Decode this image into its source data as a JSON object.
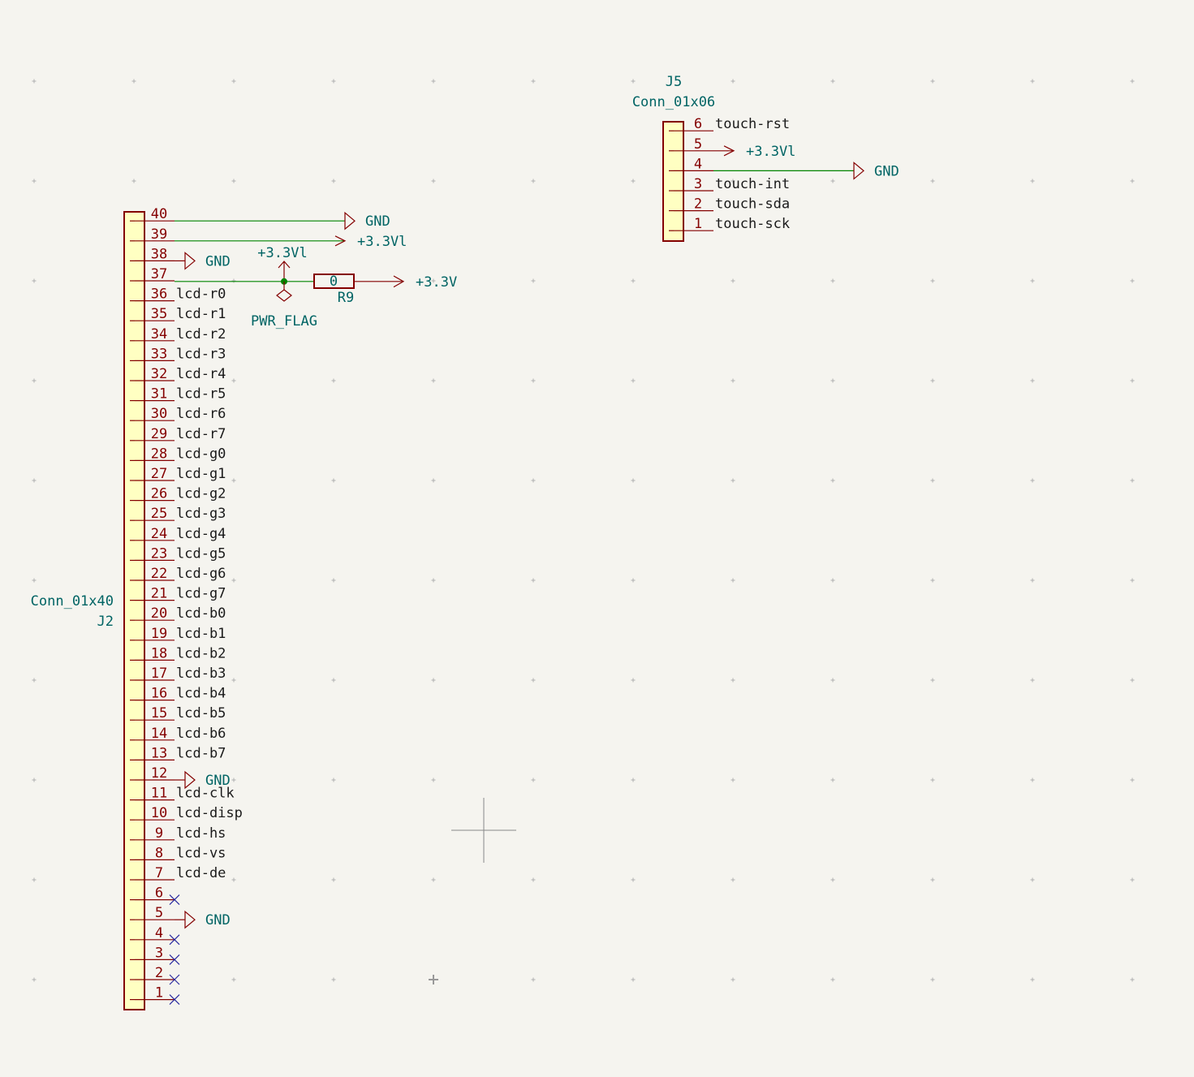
{
  "j2": {
    "reference": "J2",
    "value": "Conn_01x40",
    "pins": [
      {
        "number": 40,
        "power": "GND",
        "symbol": "gnd",
        "wire": true
      },
      {
        "number": 39,
        "power": "+3.3Vl",
        "symbol": "arrow",
        "wire": true
      },
      {
        "number": 38,
        "power": "GND",
        "symbol": "gnd"
      },
      {
        "number": 37
      },
      {
        "number": 36,
        "label": "lcd-r0"
      },
      {
        "number": 35,
        "label": "lcd-r1"
      },
      {
        "number": 34,
        "label": "lcd-r2"
      },
      {
        "number": 33,
        "label": "lcd-r3"
      },
      {
        "number": 32,
        "label": "lcd-r4"
      },
      {
        "number": 31,
        "label": "lcd-r5"
      },
      {
        "number": 30,
        "label": "lcd-r6"
      },
      {
        "number": 29,
        "label": "lcd-r7"
      },
      {
        "number": 28,
        "label": "lcd-g0"
      },
      {
        "number": 27,
        "label": "lcd-g1"
      },
      {
        "number": 26,
        "label": "lcd-g2"
      },
      {
        "number": 25,
        "label": "lcd-g3"
      },
      {
        "number": 24,
        "label": "lcd-g4"
      },
      {
        "number": 23,
        "label": "lcd-g5"
      },
      {
        "number": 22,
        "label": "lcd-g6"
      },
      {
        "number": 21,
        "label": "lcd-g7"
      },
      {
        "number": 20,
        "label": "lcd-b0"
      },
      {
        "number": 19,
        "label": "lcd-b1"
      },
      {
        "number": 18,
        "label": "lcd-b2"
      },
      {
        "number": 17,
        "label": "lcd-b3"
      },
      {
        "number": 16,
        "label": "lcd-b4"
      },
      {
        "number": 15,
        "label": "lcd-b5"
      },
      {
        "number": 14,
        "label": "lcd-b6"
      },
      {
        "number": 13,
        "label": "lcd-b7"
      },
      {
        "number": 12,
        "power": "GND",
        "symbol": "gnd"
      },
      {
        "number": 11,
        "label": "lcd-clk"
      },
      {
        "number": 10,
        "label": "lcd-disp"
      },
      {
        "number": 9,
        "label": "lcd-hs"
      },
      {
        "number": 8,
        "label": "lcd-vs"
      },
      {
        "number": 7,
        "label": "lcd-de"
      },
      {
        "number": 6,
        "nc": true
      },
      {
        "number": 5,
        "power": "GND",
        "symbol": "gnd"
      },
      {
        "number": 4,
        "nc": true
      },
      {
        "number": 3,
        "nc": true
      },
      {
        "number": 2,
        "nc": true
      },
      {
        "number": 1,
        "nc": true
      }
    ]
  },
  "pin37_circuit": {
    "power_in": "+3.3Vl",
    "flag": "PWR_FLAG",
    "resistor_value": "0",
    "resistor_ref": "R9",
    "power_out": "+3.3V"
  },
  "j5": {
    "reference": "J5",
    "value": "Conn_01x06",
    "pins": [
      {
        "number": 6,
        "label": "touch-rst"
      },
      {
        "number": 5,
        "power": "+3.3Vl",
        "symbol": "arrow"
      },
      {
        "number": 4,
        "power": "GND",
        "symbol": "gnd",
        "wire": true
      },
      {
        "number": 3,
        "label": "touch-int"
      },
      {
        "number": 2,
        "label": "touch-sda"
      },
      {
        "number": 1,
        "label": "touch-sck"
      }
    ]
  }
}
